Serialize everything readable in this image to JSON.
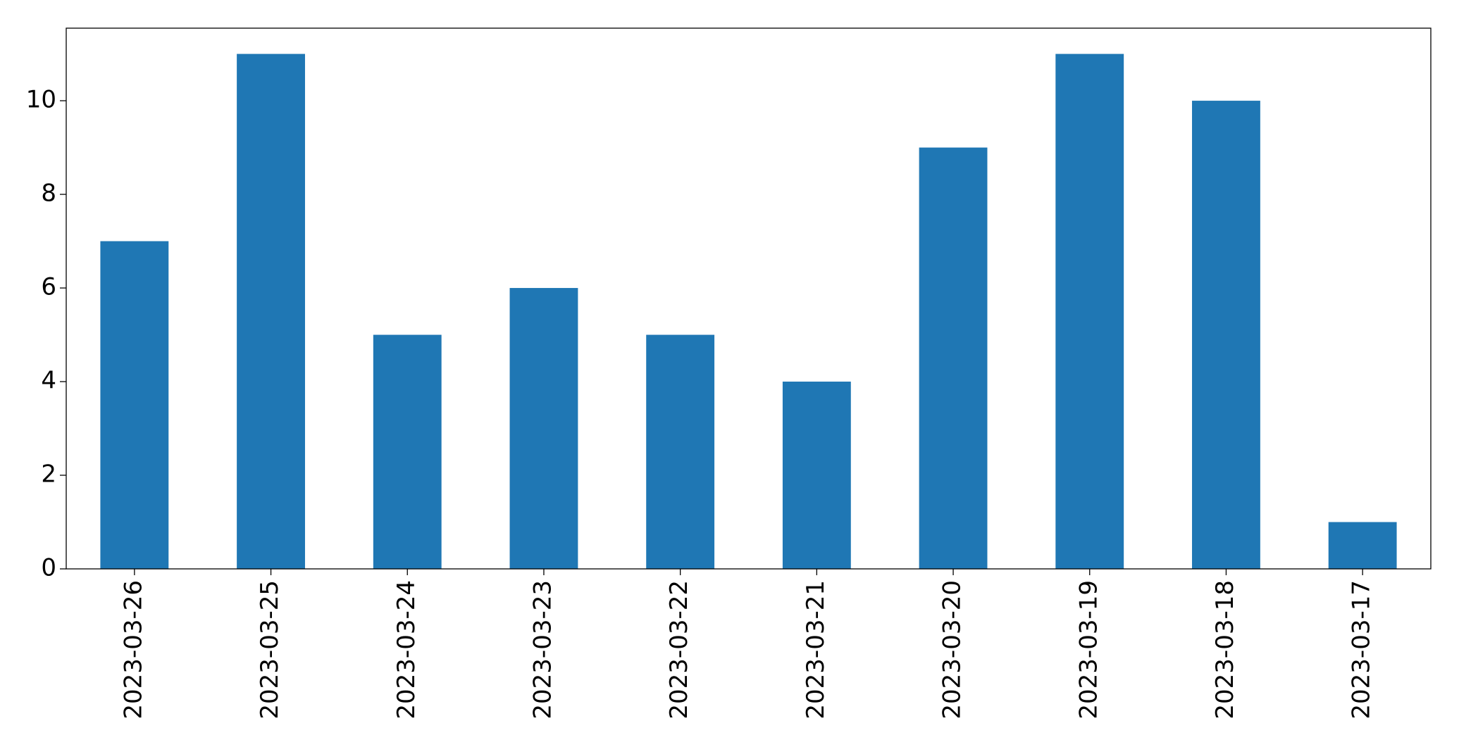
{
  "chart_data": {
    "type": "bar",
    "categories": [
      "2023-03-26",
      "2023-03-25",
      "2023-03-24",
      "2023-03-23",
      "2023-03-22",
      "2023-03-21",
      "2023-03-20",
      "2023-03-19",
      "2023-03-18",
      "2023-03-17"
    ],
    "values": [
      7,
      11,
      5,
      6,
      5,
      4,
      9,
      11,
      10,
      1
    ],
    "color": "#1f77b4",
    "ylim": [
      0,
      11.55
    ],
    "yticks": [
      0,
      2,
      4,
      6,
      8,
      10
    ],
    "grid": false
  }
}
